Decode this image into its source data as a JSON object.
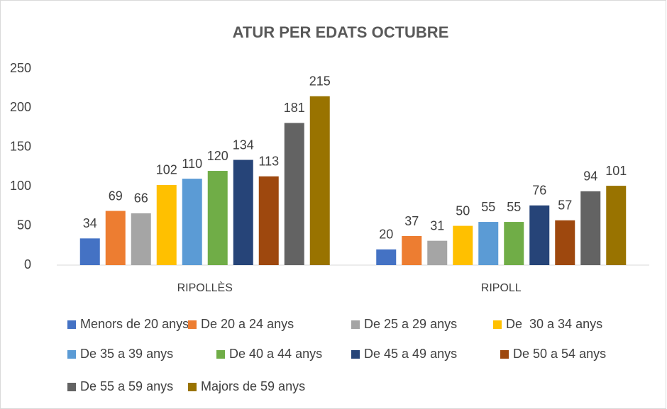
{
  "chart_data": {
    "type": "bar",
    "title": "ATUR PER EDATS OCTUBRE",
    "categories": [
      "RIPOLLÈS",
      "RIPOLL"
    ],
    "series": [
      {
        "name": "Menors de 20 anys",
        "color": "#4472c4",
        "values": [
          34,
          20
        ]
      },
      {
        "name": "De 20 a 24 anys",
        "color": "#ed7d31",
        "values": [
          69,
          37
        ]
      },
      {
        "name": "De 25 a 29 anys",
        "color": "#a5a5a5",
        "values": [
          66,
          31
        ]
      },
      {
        "name": "De  30 a 34 anys",
        "color": "#ffc000",
        "values": [
          102,
          50
        ]
      },
      {
        "name": "De 35 a 39 anys",
        "color": "#5b9bd5",
        "values": [
          110,
          55
        ]
      },
      {
        "name": "De 40 a 44 anys",
        "color": "#70ad47",
        "values": [
          120,
          55
        ]
      },
      {
        "name": "De 45 a 49 anys",
        "color": "#264478",
        "values": [
          134,
          76
        ]
      },
      {
        "name": "De 50 a 54 anys",
        "color": "#9e480e",
        "values": [
          113,
          57
        ]
      },
      {
        "name": "De 55 a 59 anys",
        "color": "#636363",
        "values": [
          181,
          94
        ]
      },
      {
        "name": "Majors de 59 anys",
        "color": "#997300",
        "values": [
          215,
          101
        ]
      }
    ],
    "ylim": [
      0,
      250
    ],
    "yticks": [
      0,
      50,
      100,
      150,
      200,
      250
    ],
    "grid": false,
    "legend": "bottom"
  }
}
